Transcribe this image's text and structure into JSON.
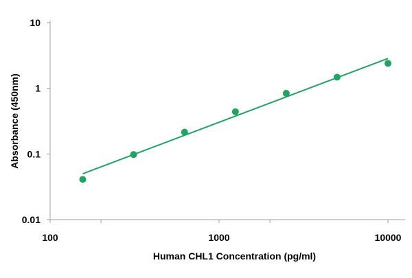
{
  "chart_data": {
    "type": "scatter",
    "title": "",
    "xlabel": "Human CHL1 Concentration (pg/ml)",
    "ylabel": "Absorbance (450nm)",
    "x_scale": "log",
    "y_scale": "log",
    "xlim": [
      100,
      10000
    ],
    "ylim": [
      0.01,
      10
    ],
    "x_tick_labels": [
      "100",
      "1000",
      "10000"
    ],
    "y_tick_labels": [
      "10",
      "1",
      "0.1",
      "0.01"
    ],
    "grid": false,
    "legend": "none",
    "point_color": "#1fa463",
    "line_color": "#1fa463",
    "series": [
      {
        "values_x": [
          156,
          312,
          625,
          1250,
          2500,
          5000,
          10000
        ],
        "values_y": [
          0.041,
          0.098,
          0.215,
          0.44,
          0.84,
          1.48,
          2.4
        ]
      }
    ],
    "trendline": {
      "type": "power",
      "x": [
        156,
        10000
      ],
      "y": [
        0.05,
        2.85
      ]
    }
  }
}
